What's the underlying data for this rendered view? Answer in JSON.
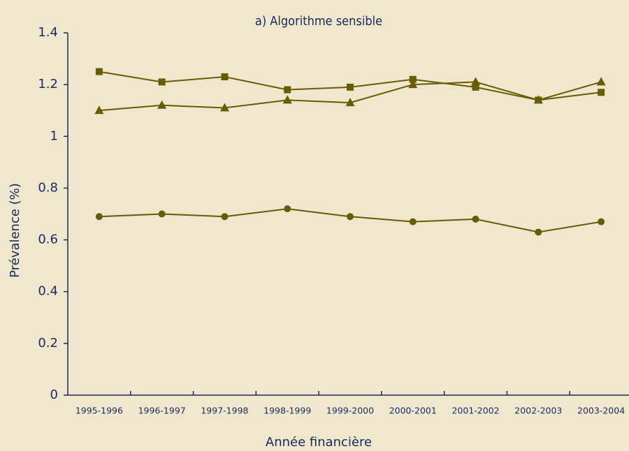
{
  "chart_data": {
    "type": "line",
    "title": "a) Algorithme sensible",
    "xlabel": "Année financière",
    "ylabel": "Prévalence (%)",
    "categories": [
      "1995-1996",
      "1996-1997",
      "1997-1998",
      "1998-1999",
      "1999-2000",
      "2000-2001",
      "2001-2002",
      "2002-2003",
      "2003-2004"
    ],
    "series": [
      {
        "color": "#675c00",
        "marker": "square",
        "values": [
          1.25,
          1.21,
          1.23,
          1.18,
          1.19,
          1.22,
          1.19,
          1.14,
          1.17
        ]
      },
      {
        "color": "#675c00",
        "marker": "triangle",
        "values": [
          1.1,
          1.12,
          1.11,
          1.14,
          1.13,
          1.2,
          1.21,
          1.14,
          1.21
        ]
      },
      {
        "color": "#675c00",
        "marker": "circle",
        "values": [
          0.69,
          0.7,
          0.69,
          0.72,
          0.69,
          0.67,
          0.68,
          0.63,
          0.67
        ]
      }
    ],
    "ylim": [
      0,
      1.4
    ],
    "yticks": [
      0,
      0.2,
      0.4,
      0.6,
      0.8,
      1,
      1.2,
      1.4
    ]
  }
}
